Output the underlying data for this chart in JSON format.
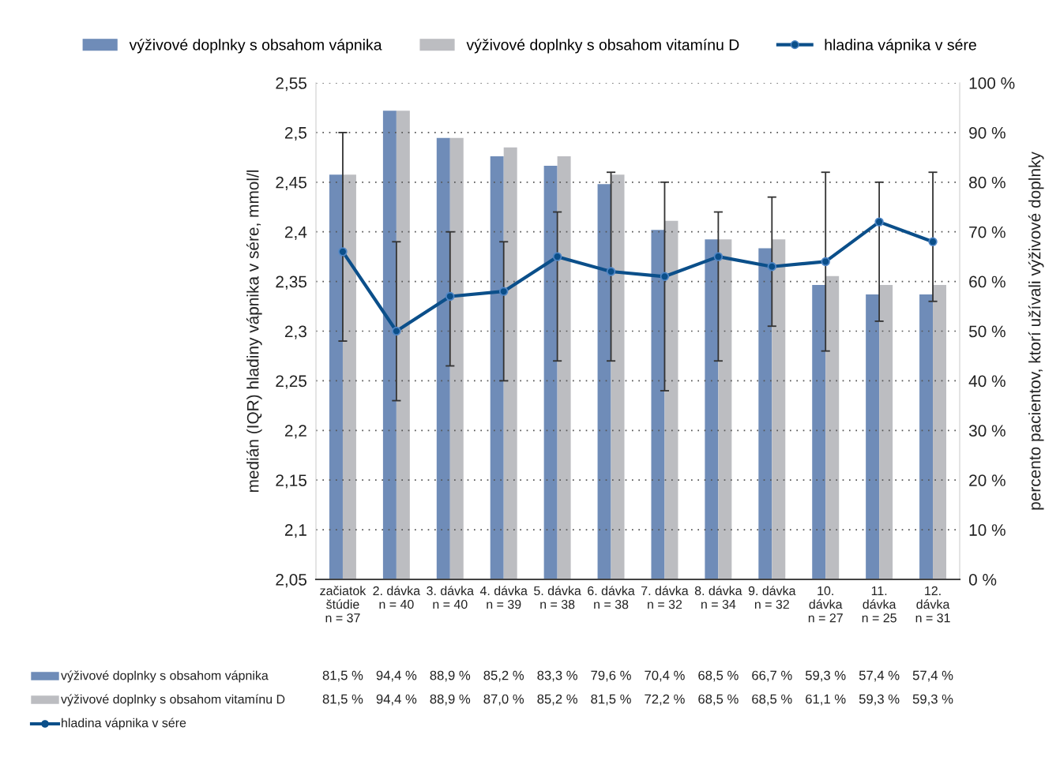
{
  "chart_data": {
    "type": "bar",
    "categories": [
      "začiatok\nštúdie\nn = 37",
      "2. dávka\nn = 40",
      "3. dávka\nn = 40",
      "4. dávka\nn = 39",
      "5. dávka\nn = 38",
      "6. dávka\nn = 38",
      "7. dávka\nn = 32",
      "8. dávka\nn = 34",
      "9. dávka\nn = 32",
      "10.\ndávka\nn = 27",
      "11.\ndávka\nn = 25",
      "12.\ndávka\nn = 31"
    ],
    "series": [
      {
        "name": "výživové doplnky s obsahom vápnika",
        "color": "#6f8cb8",
        "axis": "y2",
        "values": [
          81.5,
          94.4,
          88.9,
          85.2,
          83.3,
          79.6,
          70.4,
          68.5,
          66.7,
          59.3,
          57.4,
          57.4
        ],
        "value_labels": [
          "81,5 %",
          "94,4 %",
          "88,9 %",
          "85,2 %",
          "83,3 %",
          "79,6 %",
          "70,4 %",
          "68,5 %",
          "66,7 %",
          "59,3 %",
          "57,4 %",
          "57,4 %"
        ]
      },
      {
        "name": "výživové doplnky s obsahom vitamínu D",
        "color": "#bcbdc1",
        "axis": "y2",
        "values": [
          81.5,
          94.4,
          88.9,
          87.0,
          85.2,
          81.5,
          72.2,
          68.5,
          68.5,
          61.1,
          59.3,
          59.3
        ],
        "value_labels": [
          "81,5 %",
          "94,4 %",
          "88,9 %",
          "87,0 %",
          "85,2 %",
          "81,5 %",
          "72,2 %",
          "68,5 %",
          "68,5 %",
          "61,1 %",
          "59,3 %",
          "59,3 %"
        ]
      },
      {
        "name": "hladina vápnika v sére",
        "type": "line",
        "color": "#0b4f8a",
        "marker": "circle",
        "values": [
          2.38,
          2.3,
          2.335,
          2.34,
          2.375,
          2.36,
          2.355,
          2.375,
          2.365,
          2.37,
          2.41,
          2.39
        ],
        "errors": [
          [
            2.29,
            2.5
          ],
          [
            2.23,
            2.39
          ],
          [
            2.265,
            2.4
          ],
          [
            2.25,
            2.39
          ],
          [
            2.27,
            2.42
          ],
          [
            2.27,
            2.46
          ],
          [
            2.24,
            2.45
          ],
          [
            2.27,
            2.42
          ],
          [
            2.305,
            2.435
          ],
          [
            2.28,
            2.46
          ],
          [
            2.31,
            2.45
          ],
          [
            2.33,
            2.46
          ]
        ]
      }
    ],
    "ylabel": "medián (IQR) hladiny vápnika v sére, mmol/l",
    "y2label": "percento pacientov, ktorí užívali výživové doplnky",
    "ylim": [
      2.05,
      2.55
    ],
    "yticks": [
      {
        "value": 2.05,
        "label": "2,05"
      },
      {
        "value": 2.1,
        "label": "2,1"
      },
      {
        "value": 2.15,
        "label": "2,15"
      },
      {
        "value": 2.2,
        "label": "2,2"
      },
      {
        "value": 2.25,
        "label": "2,25"
      },
      {
        "value": 2.3,
        "label": "2,3"
      },
      {
        "value": 2.35,
        "label": "2,35"
      },
      {
        "value": 2.4,
        "label": "2,4"
      },
      {
        "value": 2.45,
        "label": "2,45"
      },
      {
        "value": 2.5,
        "label": "2,5"
      },
      {
        "value": 2.55,
        "label": "2,55"
      }
    ],
    "y2lim": [
      0,
      100
    ],
    "y2ticks": [
      {
        "value": 0,
        "label": "0 %"
      },
      {
        "value": 10,
        "label": "10 %"
      },
      {
        "value": 20,
        "label": "20 %"
      },
      {
        "value": 30,
        "label": "30 %"
      },
      {
        "value": 40,
        "label": "40 %"
      },
      {
        "value": 50,
        "label": "50 %"
      },
      {
        "value": 60,
        "label": "60 %"
      },
      {
        "value": 70,
        "label": "70 %"
      },
      {
        "value": 80,
        "label": "80 %"
      },
      {
        "value": 90,
        "label": "90 %"
      },
      {
        "value": 100,
        "label": "100 %"
      }
    ],
    "grid": "y",
    "legend": "top"
  }
}
